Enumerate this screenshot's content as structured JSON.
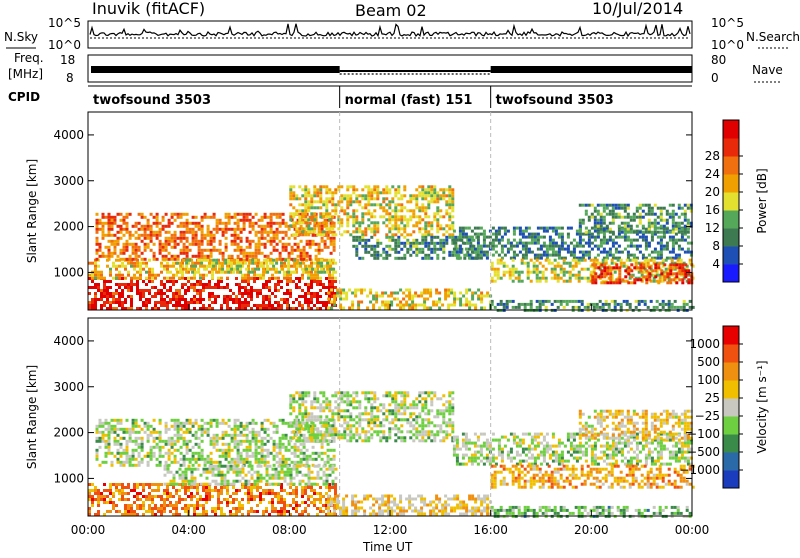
{
  "header": {
    "station": "Inuvik (fitACF)",
    "beam": "Beam 02",
    "date": "10/Jul/2014"
  },
  "top_panels": {
    "nsky_label": "N.Sky",
    "nsearch_label": "N.Search",
    "noise_ticks_left": [
      "10^5",
      "10^0"
    ],
    "noise_ticks_right": [
      "10^5",
      "10^0"
    ],
    "freq_label_1": "Freq.",
    "freq_label_2": "[MHz]",
    "freq_ticks": [
      "18",
      "8"
    ],
    "nave_label": "Nave",
    "nave_ticks": [
      "80",
      "0"
    ],
    "cpid_label": "CPID",
    "cpid_segments": [
      {
        "name": "twofsound 3503",
        "start_h": 0,
        "end_h": 10
      },
      {
        "name": "normal (fast) 151",
        "start_h": 10,
        "end_h": 16
      },
      {
        "name": "twofsound 3503",
        "start_h": 16,
        "end_h": 24
      }
    ]
  },
  "x_axis": {
    "label": "Time UT",
    "ticks": [
      "00:00",
      "04:00",
      "08:00",
      "12:00",
      "16:00",
      "20:00",
      "00:00"
    ]
  },
  "chart_data": [
    {
      "type": "heatmap",
      "ylabel": "Slant Range [km]",
      "yticks": [
        "1000",
        "2000",
        "3000",
        "4000"
      ],
      "ylim": [
        180,
        4500
      ],
      "xlim_hours": [
        0,
        24
      ],
      "colorbar_label": "Power [dB]",
      "colorbar_ticks": [
        "4",
        "8",
        "12",
        "16",
        "20",
        "24",
        "28"
      ],
      "colorbar_colors": [
        "#1a1aff",
        "#1e4fb5",
        "#3d7a52",
        "#55a85a",
        "#e4e030",
        "#f0a000",
        "#f07010",
        "#e82a0a",
        "#e00000"
      ],
      "echo_bands": [
        {
          "t0": 0,
          "t1": 9.8,
          "r0": 200,
          "r1": 900,
          "level": 0.95
        },
        {
          "t0": 0,
          "t1": 9.8,
          "r0": 900,
          "r1": 1300,
          "level": 0.6
        },
        {
          "t0": 0.3,
          "t1": 9.8,
          "r0": 1300,
          "r1": 2300,
          "level": 0.75
        },
        {
          "t0": 3.5,
          "t1": 9.8,
          "r0": 1000,
          "r1": 1300,
          "level": 0.5
        },
        {
          "t0": 8,
          "t1": 14.5,
          "r0": 1800,
          "r1": 2900,
          "level": 0.55
        },
        {
          "t0": 10.5,
          "t1": 15.5,
          "r0": 1300,
          "r1": 1800,
          "level": 0.3
        },
        {
          "t0": 9.5,
          "t1": 16,
          "r0": 250,
          "r1": 650,
          "level": 0.55
        },
        {
          "t0": 14.5,
          "t1": 24,
          "r0": 1300,
          "r1": 2000,
          "level": 0.25
        },
        {
          "t0": 16,
          "t1": 24,
          "r0": 800,
          "r1": 1300,
          "level": 0.5
        },
        {
          "t0": 20,
          "t1": 24,
          "r0": 800,
          "r1": 1200,
          "level": 0.85
        },
        {
          "t0": 19.5,
          "t1": 24,
          "r0": 1900,
          "r1": 2500,
          "level": 0.3
        },
        {
          "t0": 16,
          "t1": 24,
          "r0": 200,
          "r1": 400,
          "level": 0.3
        }
      ]
    },
    {
      "type": "heatmap",
      "ylabel": "Slant Range [km]",
      "yticks": [
        "1000",
        "2000",
        "3000",
        "4000"
      ],
      "ylim": [
        180,
        4500
      ],
      "xlim_hours": [
        0,
        24
      ],
      "colorbar_label": "Velocity [m s⁻¹]",
      "colorbar_ticks": [
        "1000",
        "500",
        "100",
        "25",
        "−25",
        "−100",
        "−500",
        "−1000"
      ],
      "colorbar_colors": [
        "#1c3cbe",
        "#2a6aa8",
        "#3a8a4a",
        "#6ed040",
        "#c8c8c0",
        "#f0c000",
        "#f09010",
        "#f05010",
        "#e80000"
      ],
      "echo_bands": [
        {
          "t0": 0,
          "t1": 9.8,
          "r0": 200,
          "r1": 900,
          "level": 0.8
        },
        {
          "t0": 0.3,
          "t1": 9.8,
          "r0": 1300,
          "r1": 2300,
          "level": 0.45
        },
        {
          "t0": 3,
          "t1": 9.8,
          "r0": 900,
          "r1": 1300,
          "level": 0.45
        },
        {
          "t0": 8,
          "t1": 14.5,
          "r0": 1800,
          "r1": 2900,
          "level": 0.45
        },
        {
          "t0": 9.5,
          "t1": 16,
          "r0": 250,
          "r1": 650,
          "level": 0.62
        },
        {
          "t0": 14.5,
          "t1": 24,
          "r0": 1300,
          "r1": 2000,
          "level": 0.45
        },
        {
          "t0": 16,
          "t1": 24,
          "r0": 800,
          "r1": 1300,
          "level": 0.7
        },
        {
          "t0": 19.5,
          "t1": 24,
          "r0": 1900,
          "r1": 2500,
          "level": 0.6
        },
        {
          "t0": 16,
          "t1": 24,
          "r0": 200,
          "r1": 400,
          "level": 0.35
        }
      ]
    }
  ]
}
